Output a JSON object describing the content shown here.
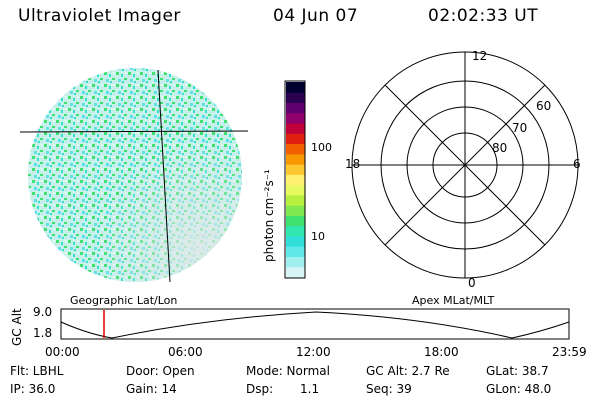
{
  "header": {
    "instrument": "Ultraviolet Imager",
    "date": "04 Jun 07",
    "time": "02:02:33 UT"
  },
  "colorbar": {
    "unit_label": "photon cm⁻²s⁻¹",
    "ticks": [
      "100",
      "10"
    ],
    "colors": [
      "#000030",
      "#2a0050",
      "#600070",
      "#90006a",
      "#c00038",
      "#e02010",
      "#f06000",
      "#f89800",
      "#ffc830",
      "#fff070",
      "#e8f860",
      "#b8f040",
      "#80e850",
      "#40e070",
      "#30e8b0",
      "#30e0d8",
      "#60e8e8",
      "#a0f0f0",
      "#d8f4f4"
    ]
  },
  "polar_plot": {
    "mlt_labels": {
      "top": "12",
      "left": "18",
      "right": "6",
      "bottom": "0"
    },
    "lat_labels": [
      "60",
      "70",
      "80"
    ]
  },
  "timeline": {
    "y_axis_label": "GC Alt",
    "y_ticks": [
      "9.0",
      "1.8"
    ],
    "left_title": "Geographic Lat/Lon",
    "right_title": "Apex MLat/MLT",
    "x_ticks": [
      "00:00",
      "06:00",
      "12:00",
      "18:00",
      "23:59"
    ],
    "marker_color": "#e00000"
  },
  "status": {
    "filter": "Flt: LBHL",
    "door": "Door: Open",
    "mode": "Mode: Normal",
    "gc_alt": "GC Alt: 2.7 Re",
    "glat": "GLat:  38.7",
    "ip": "IP: 36.0",
    "gain": "Gain: 14",
    "dsp_label": "Dsp:",
    "dsp_value": "1.1",
    "seq": "Seq: 39",
    "glon": "GLon:  48.0"
  },
  "colors": {
    "image_base": "#d8f0ee",
    "image_green": "#40e070",
    "image_teal": "#30e0c8",
    "image_cyan": "#60e0e8",
    "timeline_marker": "#e00000"
  }
}
